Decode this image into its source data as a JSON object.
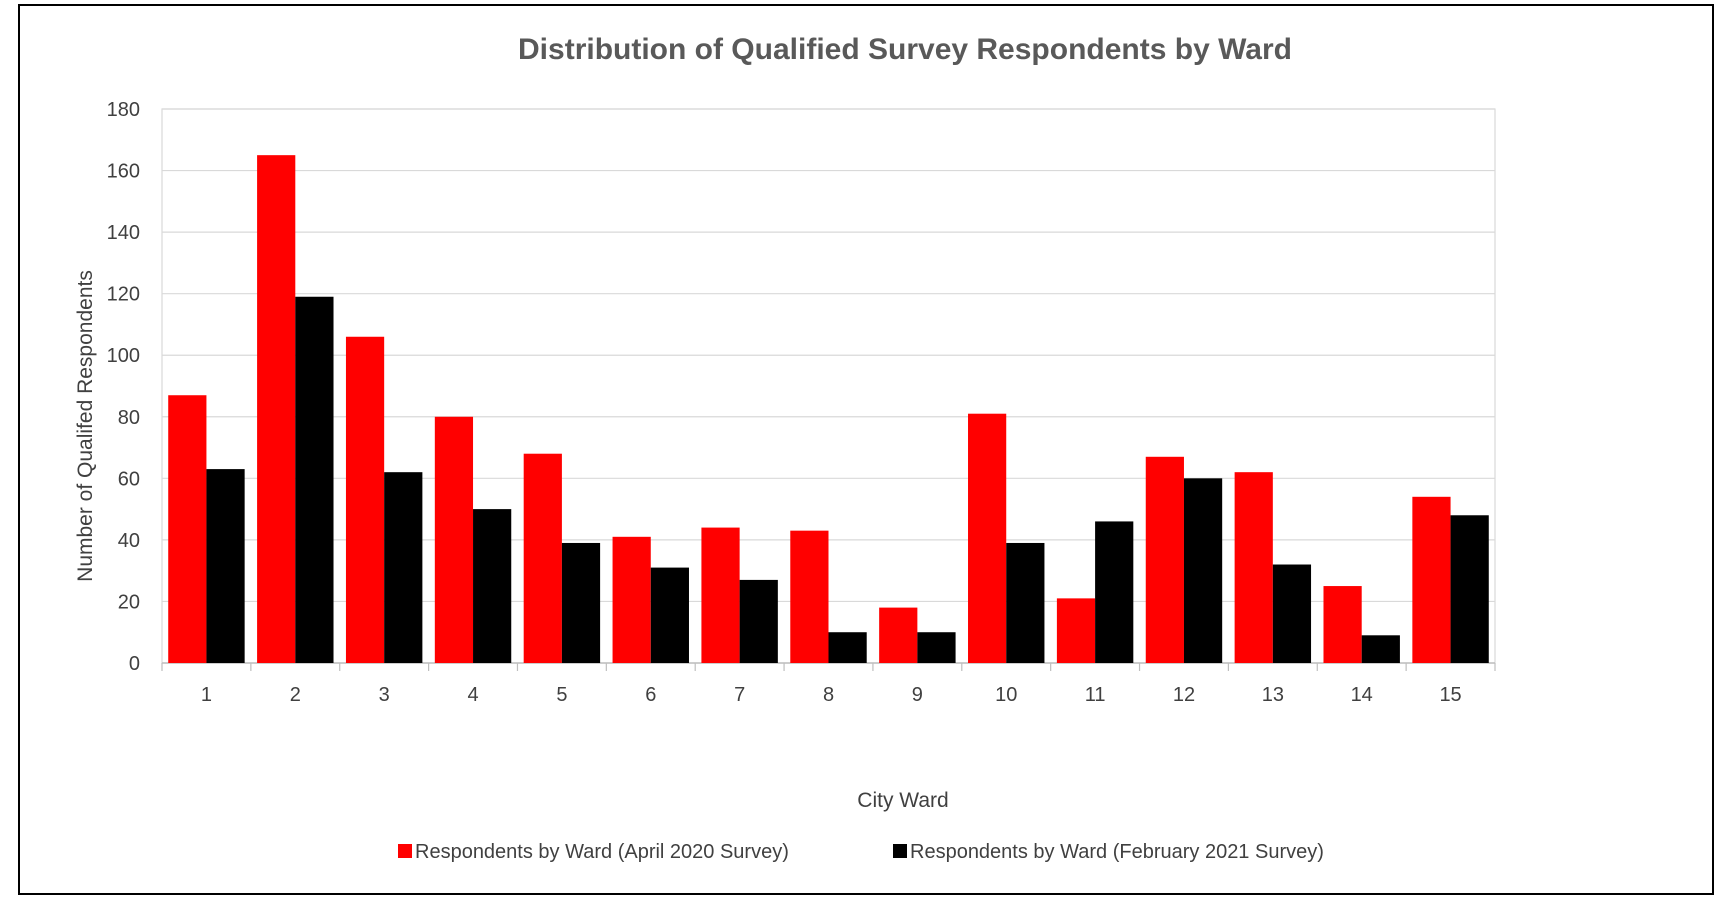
{
  "chart_data": {
    "type": "bar",
    "title": "Distribution of Qualified Survey Respondents by Ward",
    "xlabel": "City Ward",
    "ylabel": "Number of Qualifed Respondents",
    "categories": [
      "1",
      "2",
      "3",
      "4",
      "5",
      "6",
      "7",
      "8",
      "9",
      "10",
      "11",
      "12",
      "13",
      "14",
      "15"
    ],
    "series": [
      {
        "name": "Respondents by Ward (April 2020 Survey)",
        "color": "#ff0000",
        "values": [
          87,
          165,
          106,
          80,
          68,
          41,
          44,
          43,
          18,
          81,
          21,
          67,
          62,
          25,
          54
        ]
      },
      {
        "name": "Respondents by Ward (February 2021 Survey)",
        "color": "#000000",
        "values": [
          63,
          119,
          62,
          50,
          39,
          31,
          27,
          10,
          10,
          39,
          46,
          60,
          32,
          9,
          48
        ]
      }
    ],
    "ylim": [
      0,
      180
    ],
    "yticks": [
      0,
      20,
      40,
      60,
      80,
      100,
      120,
      140,
      160,
      180
    ],
    "grid": true,
    "legend_position": "bottom"
  }
}
